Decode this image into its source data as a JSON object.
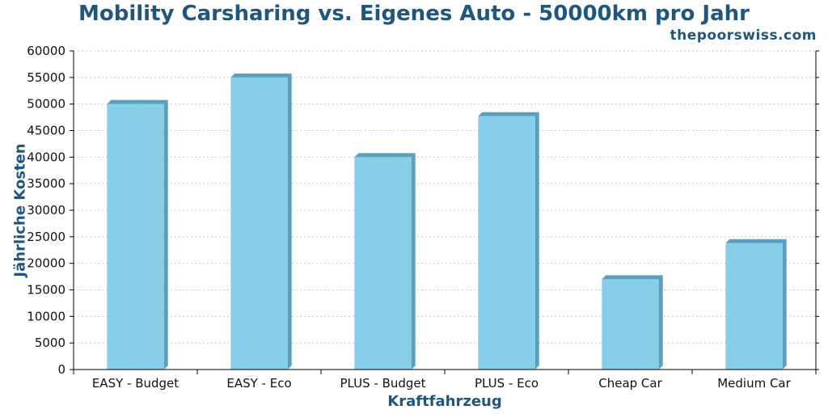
{
  "header": {
    "title": "Mobility Carsharing vs. Eigenes Auto - 50000km pro Jahr",
    "site": "thepoorswiss.com"
  },
  "chart_data": {
    "type": "bar",
    "title": "Mobility Carsharing vs. Eigenes Auto - 50000km pro Jahr",
    "xlabel": "Kraftfahrzeug",
    "ylabel": "Jährliche Kosten",
    "categories": [
      "EASY - Budget",
      "EASY - Eco",
      "PLUS - Budget",
      "PLUS - Eco",
      "Cheap Car",
      "Medium Car"
    ],
    "values": [
      50000,
      55000,
      40000,
      47700,
      17000,
      23800
    ],
    "ylim": [
      0,
      60000
    ],
    "yticks": [
      0,
      5000,
      10000,
      15000,
      20000,
      25000,
      30000,
      35000,
      40000,
      45000,
      50000,
      55000,
      60000
    ],
    "grid": true,
    "colors": {
      "bar_face": "#87ceeb",
      "bar_side": "#5b9fbd",
      "title": "#1f5680",
      "grid": "#c8c8c8"
    }
  }
}
